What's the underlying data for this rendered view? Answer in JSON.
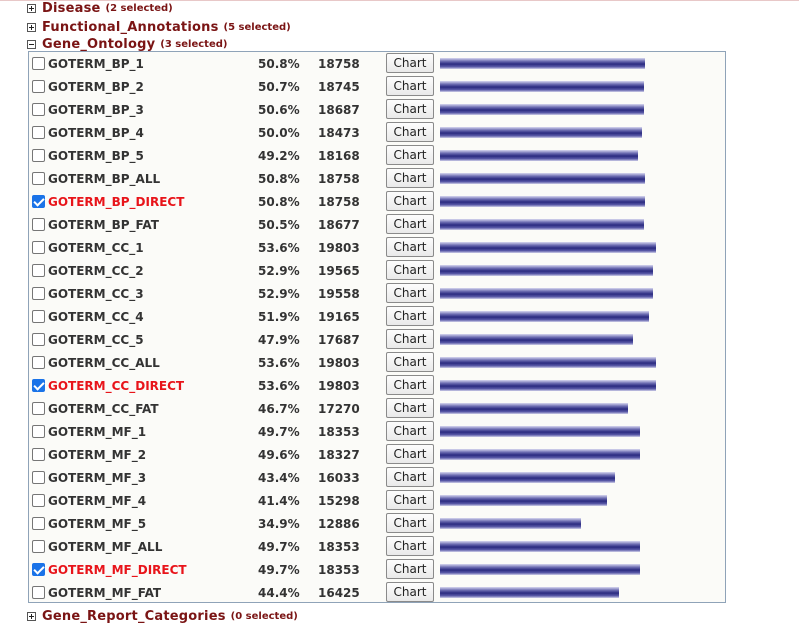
{
  "categories_above": [
    {
      "name": "Disease",
      "count": "(2 selected)",
      "expanded": false
    },
    {
      "name": "Functional_Annotations",
      "count": "(5 selected)",
      "expanded": false
    },
    {
      "name": "Gene_Ontology",
      "count": "(3 selected)",
      "expanded": true
    }
  ],
  "category_below": {
    "name": "Gene_Report_Categories",
    "count": "(0 selected)",
    "expanded": false
  },
  "chart_button_label": "Chart",
  "colors": {
    "category": "#7a1414",
    "selected_term": "#e8141a",
    "bar": "#2a2a80",
    "panel_border": "#8fa3b8"
  },
  "terms": [
    {
      "name": "GOTERM_BP_1",
      "percent": "50.8%",
      "count": "18758",
      "checked": false,
      "coverage": 0.508
    },
    {
      "name": "GOTERM_BP_2",
      "percent": "50.7%",
      "count": "18745",
      "checked": false,
      "coverage": 0.507
    },
    {
      "name": "GOTERM_BP_3",
      "percent": "50.6%",
      "count": "18687",
      "checked": false,
      "coverage": 0.506
    },
    {
      "name": "GOTERM_BP_4",
      "percent": "50.0%",
      "count": "18473",
      "checked": false,
      "coverage": 0.5
    },
    {
      "name": "GOTERM_BP_5",
      "percent": "49.2%",
      "count": "18168",
      "checked": false,
      "coverage": 0.492
    },
    {
      "name": "GOTERM_BP_ALL",
      "percent": "50.8%",
      "count": "18758",
      "checked": false,
      "coverage": 0.508
    },
    {
      "name": "GOTERM_BP_DIRECT",
      "percent": "50.8%",
      "count": "18758",
      "checked": true,
      "coverage": 0.508
    },
    {
      "name": "GOTERM_BP_FAT",
      "percent": "50.5%",
      "count": "18677",
      "checked": false,
      "coverage": 0.505
    },
    {
      "name": "GOTERM_CC_1",
      "percent": "53.6%",
      "count": "19803",
      "checked": false,
      "coverage": 0.536
    },
    {
      "name": "GOTERM_CC_2",
      "percent": "52.9%",
      "count": "19565",
      "checked": false,
      "coverage": 0.529
    },
    {
      "name": "GOTERM_CC_3",
      "percent": "52.9%",
      "count": "19558",
      "checked": false,
      "coverage": 0.529
    },
    {
      "name": "GOTERM_CC_4",
      "percent": "51.9%",
      "count": "19165",
      "checked": false,
      "coverage": 0.519
    },
    {
      "name": "GOTERM_CC_5",
      "percent": "47.9%",
      "count": "17687",
      "checked": false,
      "coverage": 0.479
    },
    {
      "name": "GOTERM_CC_ALL",
      "percent": "53.6%",
      "count": "19803",
      "checked": false,
      "coverage": 0.536
    },
    {
      "name": "GOTERM_CC_DIRECT",
      "percent": "53.6%",
      "count": "19803",
      "checked": true,
      "coverage": 0.536
    },
    {
      "name": "GOTERM_CC_FAT",
      "percent": "46.7%",
      "count": "17270",
      "checked": false,
      "coverage": 0.467
    },
    {
      "name": "GOTERM_MF_1",
      "percent": "49.7%",
      "count": "18353",
      "checked": false,
      "coverage": 0.497
    },
    {
      "name": "GOTERM_MF_2",
      "percent": "49.6%",
      "count": "18327",
      "checked": false,
      "coverage": 0.496
    },
    {
      "name": "GOTERM_MF_3",
      "percent": "43.4%",
      "count": "16033",
      "checked": false,
      "coverage": 0.434
    },
    {
      "name": "GOTERM_MF_4",
      "percent": "41.4%",
      "count": "15298",
      "checked": false,
      "coverage": 0.414
    },
    {
      "name": "GOTERM_MF_5",
      "percent": "34.9%",
      "count": "12886",
      "checked": false,
      "coverage": 0.349
    },
    {
      "name": "GOTERM_MF_ALL",
      "percent": "49.7%",
      "count": "18353",
      "checked": false,
      "coverage": 0.497
    },
    {
      "name": "GOTERM_MF_DIRECT",
      "percent": "49.7%",
      "count": "18353",
      "checked": true,
      "coverage": 0.497
    },
    {
      "name": "GOTERM_MF_FAT",
      "percent": "44.4%",
      "count": "16425",
      "checked": false,
      "coverage": 0.444
    }
  ]
}
